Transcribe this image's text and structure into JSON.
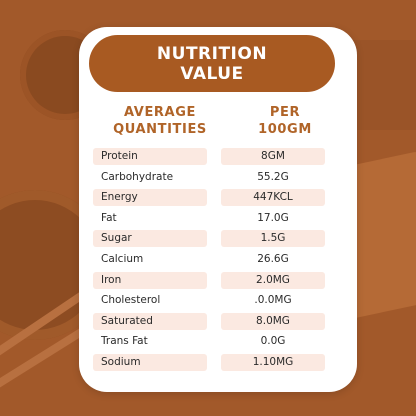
{
  "title": {
    "line1": "NUTRITION",
    "line2": "VALUE"
  },
  "headers": {
    "left_line1": "AVERAGE",
    "left_line2": "QUANTITIES",
    "right_line1": "PER",
    "right_line2": "100GM"
  },
  "rows": [
    {
      "name": "Protein",
      "value": "8GM"
    },
    {
      "name": "Carbohydrate",
      "value": "55.2G"
    },
    {
      "name": "Energy",
      "value": "447KCL"
    },
    {
      "name": "Fat",
      "value": "17.0G"
    },
    {
      "name": "Sugar",
      "value": "1.5G"
    },
    {
      "name": "Calcium",
      "value": "26.6G"
    },
    {
      "name": "Iron",
      "value": "2.0MG"
    },
    {
      "name": "Cholesterol",
      "value": ".0.0MG"
    },
    {
      "name": "Saturated",
      "value": "8.0MG"
    },
    {
      "name": "Trans Fat",
      "value": "0.0G"
    },
    {
      "name": "Sodium",
      "value": "1.10MG"
    }
  ],
  "colors": {
    "background": "#a2592a",
    "accent": "#a85a22",
    "header_text": "#b06428",
    "row_shade": "#fbe9e1",
    "card": "#ffffff"
  }
}
